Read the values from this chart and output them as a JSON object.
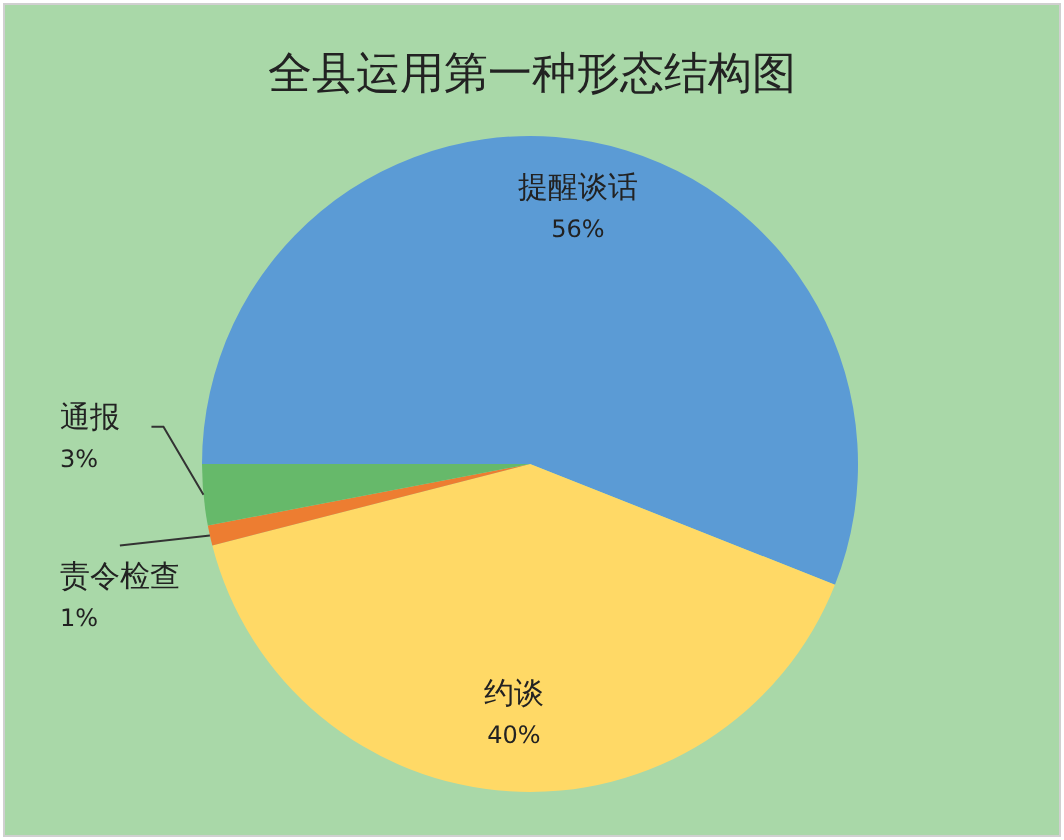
{
  "chart_data": {
    "type": "pie",
    "title": "全县运用第一种形态结构图",
    "categories": [
      "提醒谈话",
      "约谈",
      "责令检查",
      "通报"
    ],
    "values": [
      56,
      40,
      1,
      3
    ],
    "colors": [
      "#5b9bd5",
      "#ffd966",
      "#ed7d31",
      "#66b96a"
    ],
    "value_labels": [
      "56%",
      "40%",
      "1%",
      "3%"
    ]
  }
}
